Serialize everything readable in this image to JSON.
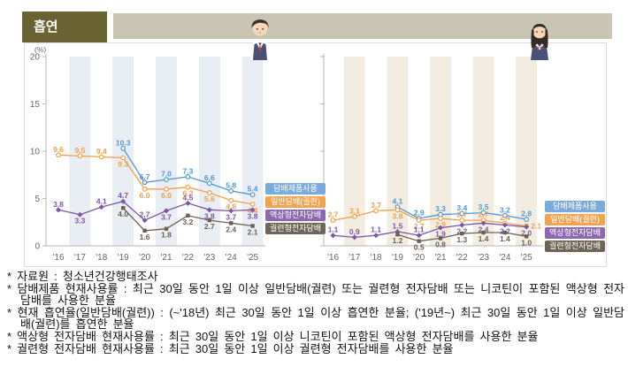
{
  "header": {
    "title": "흡연"
  },
  "legend": [
    "담배제품사용",
    "일반담배(궐련)",
    "액상형전자담배",
    "궐련형전자담배"
  ],
  "colors": {
    "title_bg": "#6B6233",
    "banner_bg": "#C9C5B2",
    "axis": "#B5B5B5",
    "tick_label": "#666666"
  },
  "footnotes": [
    "* 자료원 : 청소년건강행태조사",
    "* 담배제품 현재사용률 : 최근 30일 동안 1일 이상 일반담배(궐련) 또는 궐련형 전자담배 또는 니코틴이 포함된 액상형 전자담배를 사용한 분율",
    "* 현재 흡연율(일반담배(궐련)) : (~'18년) 최근 30일 동안 1일 이상 흡연한 분율; ('19년~) 최근 30일 동안 1일 이상 일반담배(궐련)를 흡연한 분율",
    "* 액상형 전자담배 현재사용률 : 최근 30일 동안 1일 이상 니코틴이 포함된 액상형 전자담배를 사용한 분율",
    "* 궐련형 전자담배 현재사용률 : 최근 30일 동안 1일 이상 궐련형 전자담배를 사용한 분율"
  ],
  "chart_data": [
    {
      "type": "line",
      "group": "male",
      "icon": "boy-student",
      "x": [
        "'16",
        "'17",
        "'18",
        "'19",
        "'20",
        "'21",
        "'22",
        "'23",
        "'24",
        "'25"
      ],
      "ylabel": "(%)",
      "ylim": [
        0,
        20
      ],
      "yticks": [
        0,
        5,
        10,
        15,
        20
      ],
      "grid": false,
      "legend_position": "right",
      "stripe_color": "#E9EDF4",
      "series": [
        {
          "name": "담배제품사용",
          "color": "#4F97D4",
          "legend_bg": "#79ACDC",
          "marker": "circle",
          "values": [
            null,
            null,
            null,
            10.3,
            6.7,
            7.0,
            7.3,
            6.6,
            5.8,
            5.4
          ],
          "label_side": [
            "above",
            "above",
            "above",
            "above",
            "above",
            "above",
            "above",
            "above",
            "above",
            "above"
          ]
        },
        {
          "name": "일반담배(궐련)",
          "color": "#F0A04B",
          "legend_bg": "#F2A34F",
          "marker": "circle",
          "values": [
            9.6,
            9.5,
            9.4,
            9.3,
            6.0,
            6.0,
            6.2,
            5.6,
            4.8,
            4.4
          ],
          "label_side": [
            "above",
            "above",
            "above",
            "below",
            "below",
            "below",
            "below",
            "below",
            "below",
            "below"
          ]
        },
        {
          "name": "액상형전자담배",
          "color": "#7D55A4",
          "legend_bg": "#8D68AE",
          "marker": "diamond",
          "values": [
            3.8,
            3.3,
            4.1,
            4.7,
            2.7,
            3.7,
            4.5,
            3.8,
            3.7,
            3.8
          ],
          "label_side": [
            "above",
            "below",
            "above",
            "above",
            "above",
            "below",
            "above",
            "below",
            "below",
            "below"
          ]
        },
        {
          "name": "궐련형전자담배",
          "color": "#6A6052",
          "legend_bg": "#6F6557",
          "marker": "square",
          "values": [
            null,
            null,
            null,
            4.0,
            1.6,
            1.8,
            3.2,
            2.7,
            2.4,
            2.1
          ],
          "label_side": [
            "below",
            "below",
            "below",
            "below",
            "below",
            "below",
            "below",
            "below",
            "below",
            "below"
          ]
        }
      ]
    },
    {
      "type": "line",
      "group": "female",
      "icon": "girl-student",
      "x": [
        "'16",
        "'17",
        "'18",
        "'19",
        "'20",
        "'21",
        "'22",
        "'23",
        "'24",
        "'25"
      ],
      "ylabel": "(%)",
      "ylim": [
        0,
        20
      ],
      "yticks": [
        0,
        5,
        10,
        15,
        20
      ],
      "grid": false,
      "legend_position": "right",
      "stripe_color": "#F2EDE0",
      "series": [
        {
          "name": "담배제품사용",
          "color": "#4F97D4",
          "legend_bg": "#79ACDC",
          "marker": "circle",
          "values": [
            null,
            null,
            null,
            4.1,
            2.9,
            3.3,
            3.4,
            3.5,
            3.2,
            2.8
          ],
          "label_side": [
            "above",
            "above",
            "above",
            "above",
            "above",
            "above",
            "above",
            "above",
            "above",
            "above"
          ]
        },
        {
          "name": "일반담배(궐련)",
          "color": "#F0A04B",
          "legend_bg": "#F2A34F",
          "marker": "circle",
          "values": [
            2.7,
            3.1,
            3.7,
            3.8,
            2.7,
            2.9,
            2.7,
            2.7,
            2.4,
            2.1
          ],
          "label_side": [
            "above",
            "above",
            "above",
            "below",
            "below",
            "below",
            "above",
            "above",
            "above",
            "right"
          ]
        },
        {
          "name": "액상형전자담배",
          "color": "#7D55A4",
          "legend_bg": "#8D68AE",
          "marker": "diamond",
          "values": [
            1.1,
            0.9,
            1.1,
            1.5,
            1.1,
            1.9,
            2.2,
            2.4,
            2.2,
            2.0
          ],
          "label_side": [
            "above",
            "above",
            "above",
            "above",
            "above",
            "below",
            "below",
            "below",
            "below",
            "below"
          ]
        },
        {
          "name": "궐련형전자담배",
          "color": "#6A6052",
          "legend_bg": "#6F6557",
          "marker": "square",
          "values": [
            null,
            null,
            null,
            1.2,
            0.5,
            0.8,
            1.3,
            1.4,
            1.4,
            1.0
          ],
          "label_side": [
            "below",
            "below",
            "below",
            "below",
            "below",
            "below",
            "below",
            "below",
            "below",
            "below"
          ]
        }
      ]
    }
  ]
}
